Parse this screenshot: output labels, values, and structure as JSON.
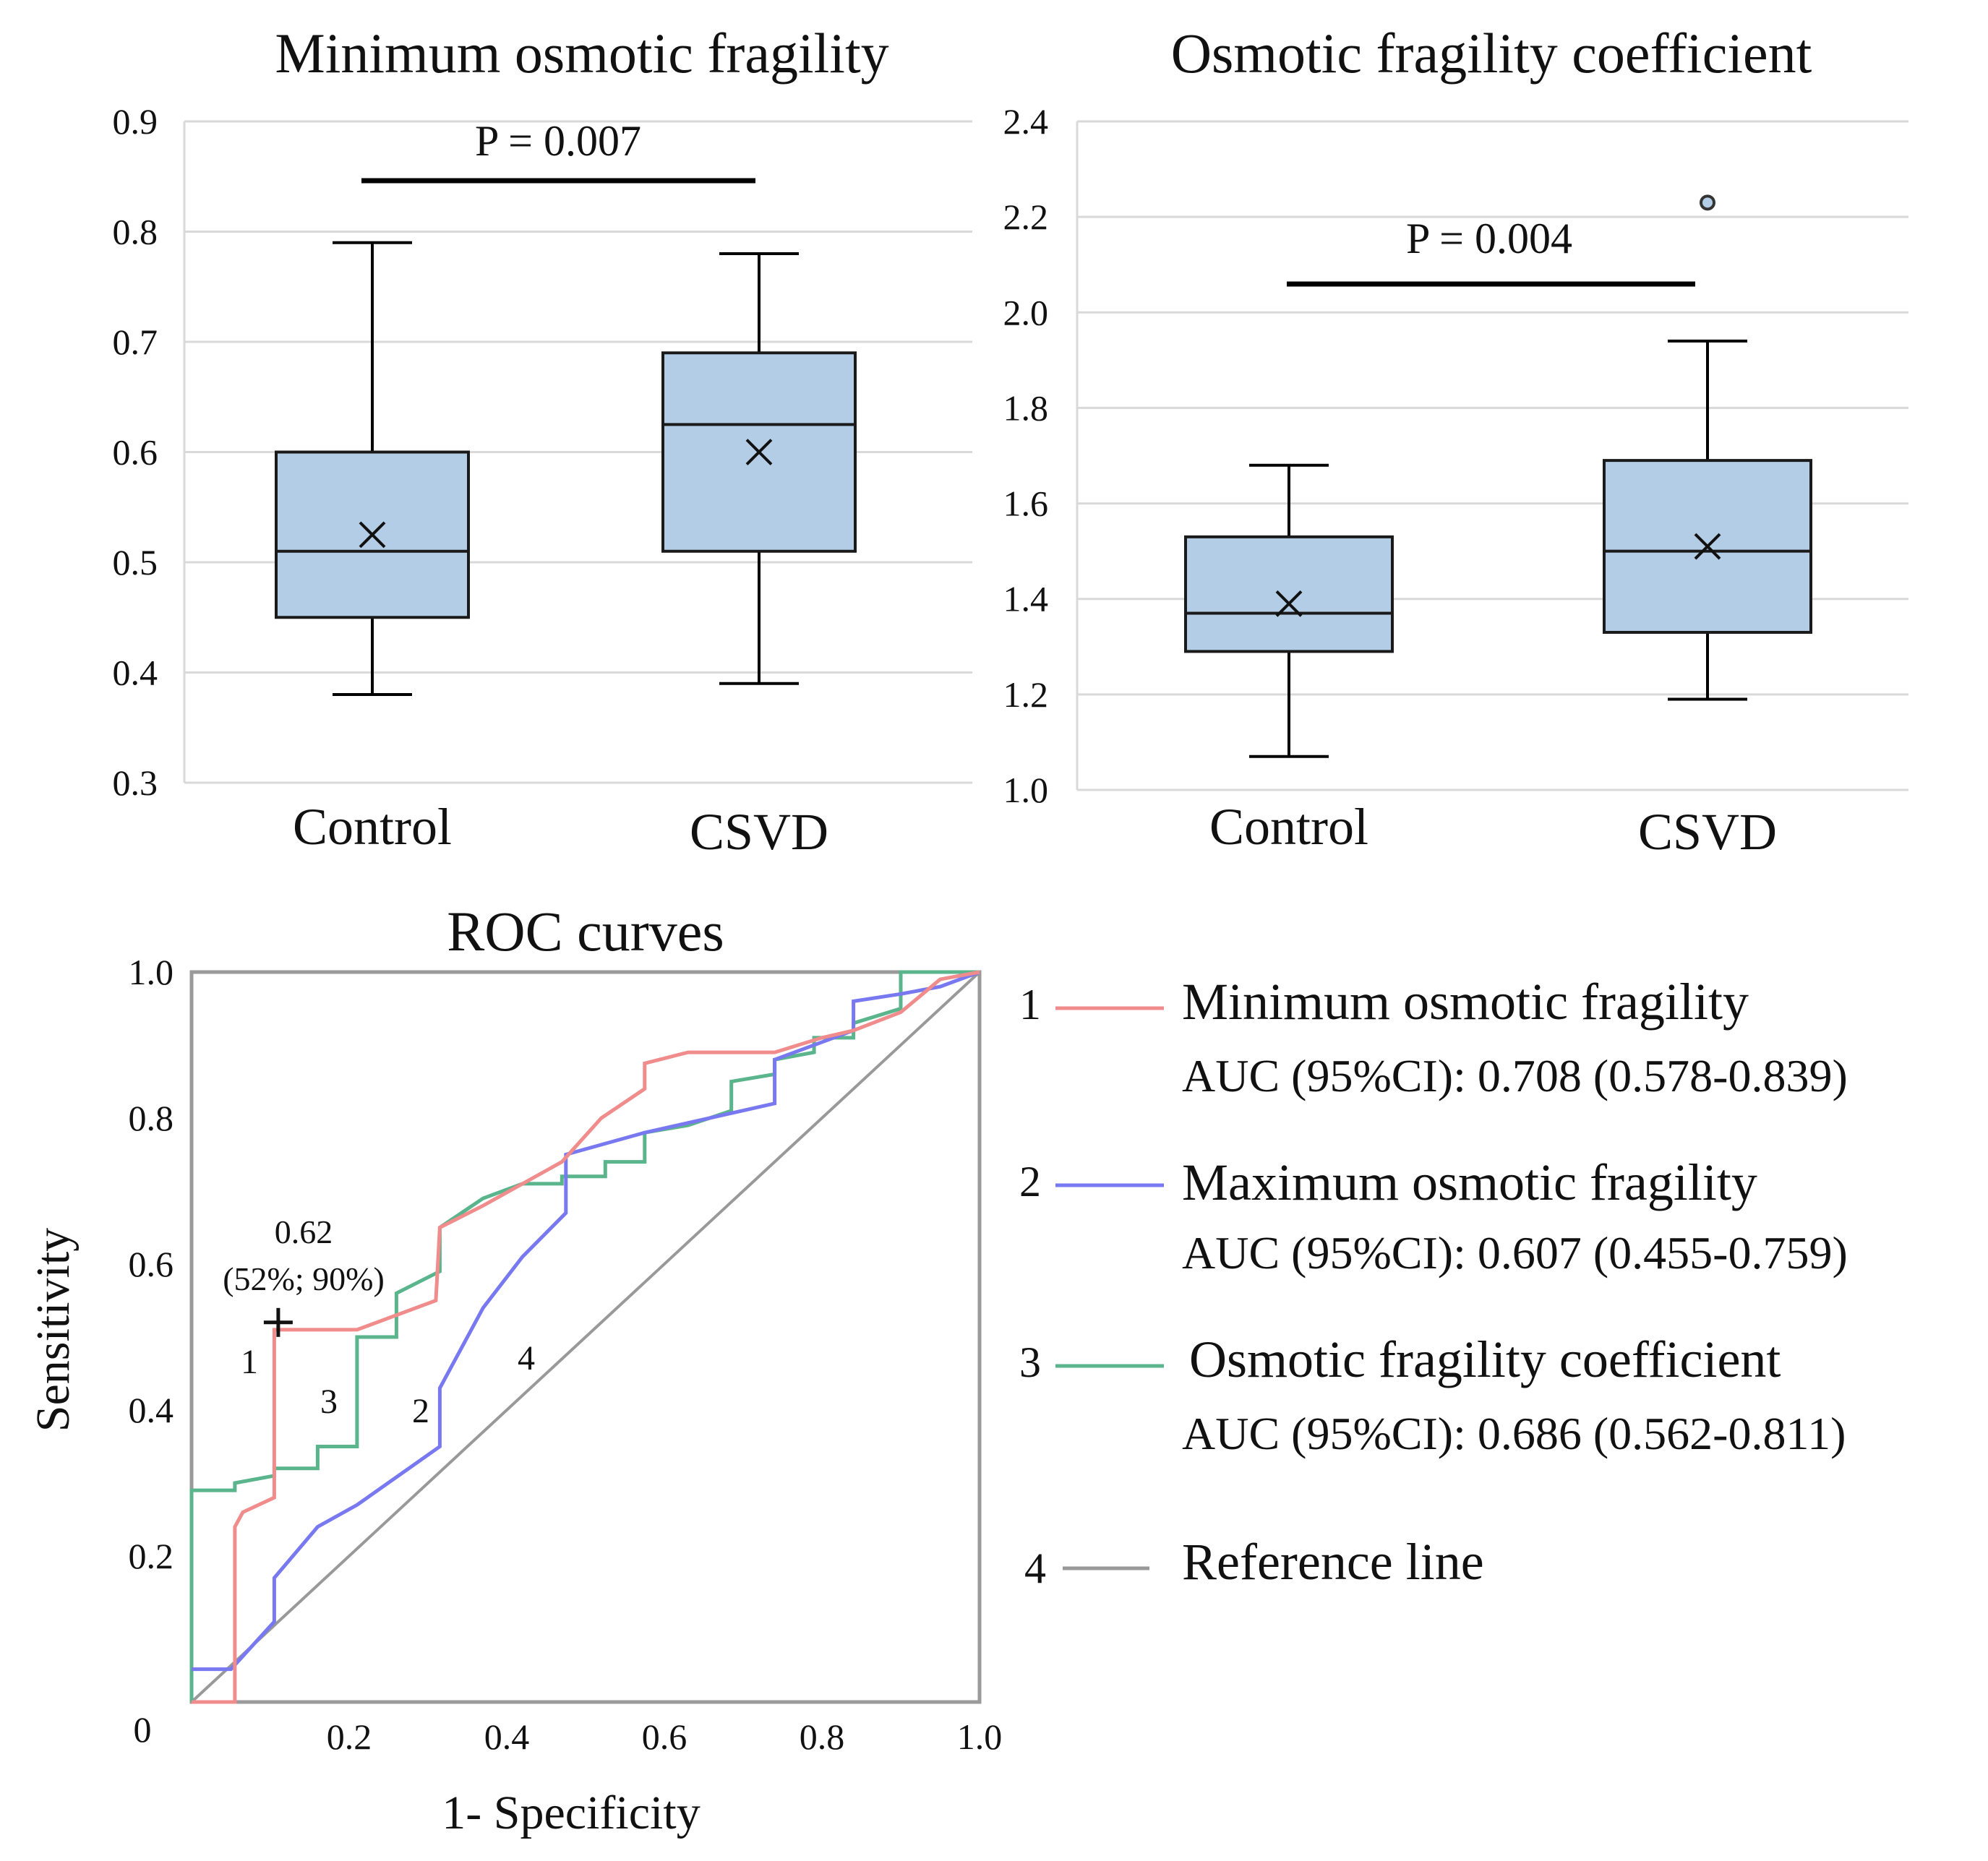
{
  "chart_data": [
    {
      "type": "box",
      "title": "Minimum osmotic fragility",
      "categories": [
        "Control",
        "CSVD"
      ],
      "ylim": [
        0.3,
        0.9
      ],
      "yticks": [
        "0.9",
        "0.8",
        "0.7",
        "0.6",
        "0.5",
        "0.4",
        "0.3"
      ],
      "ytick_values": [
        0.9,
        0.8,
        0.7,
        0.6,
        0.5,
        0.4,
        0.3
      ],
      "boxes": [
        {
          "name": "Control",
          "min": 0.38,
          "q1": 0.45,
          "median": 0.51,
          "q3": 0.6,
          "max": 0.79,
          "mean": 0.525
        },
        {
          "name": "CSVD",
          "min": 0.39,
          "q1": 0.51,
          "median": 0.625,
          "q3": 0.69,
          "max": 0.78,
          "mean": 0.6
        }
      ],
      "comparison": {
        "label": "P = 0.007"
      },
      "box_color": "#b4cde6"
    },
    {
      "type": "box",
      "title": "Osmotic fragility coefficient",
      "categories": [
        "Control",
        "CSVD"
      ],
      "ylim": [
        1.0,
        2.4
      ],
      "yticks": [
        "2.4",
        "2.2",
        "2.0",
        "1.8",
        "1.6",
        "1.4",
        "1.2",
        "1.0"
      ],
      "ytick_values": [
        2.4,
        2.2,
        2.0,
        1.8,
        1.6,
        1.4,
        1.2,
        1.0
      ],
      "boxes": [
        {
          "name": "Control",
          "min": 1.07,
          "q1": 1.29,
          "median": 1.37,
          "q3": 1.53,
          "max": 1.68,
          "mean": 1.39
        },
        {
          "name": "CSVD",
          "min": 1.19,
          "q1": 1.33,
          "median": 1.5,
          "q3": 1.69,
          "max": 1.94,
          "mean": 1.51,
          "outliers": [
            2.23
          ]
        }
      ],
      "comparison": {
        "label": "P = 0.004"
      },
      "box_color": "#b4cde6"
    },
    {
      "type": "line",
      "title": "ROC curves",
      "xlabel": "1- Specificity",
      "ylabel": "Sensitivity",
      "xlim": [
        0,
        1
      ],
      "ylim": [
        0,
        1
      ],
      "xticks": [
        "0.2",
        "0.4",
        "0.6",
        "0.8",
        "1.0"
      ],
      "xtick_values": [
        0.2,
        0.4,
        0.6,
        0.8,
        1.0
      ],
      "yticks": [
        "1.0",
        "0.8",
        "0.6",
        "0.4",
        "0.2"
      ],
      "ytick_values": [
        1.0,
        0.8,
        0.6,
        0.4,
        0.2
      ],
      "origin_label": "0",
      "series": [
        {
          "num": "1",
          "name": "Minimum osmotic fragility",
          "auc": "AUC (95%CI): 0.708 (0.578-0.839)",
          "color": "#f08c8c",
          "points": [
            [
              0,
              0
            ],
            [
              0.055,
              0
            ],
            [
              0.055,
              0.24
            ],
            [
              0.065,
              0.26
            ],
            [
              0.105,
              0.28
            ],
            [
              0.105,
              0.51
            ],
            [
              0.21,
              0.51
            ],
            [
              0.31,
              0.55
            ],
            [
              0.315,
              0.65
            ],
            [
              0.37,
              0.68
            ],
            [
              0.47,
              0.74
            ],
            [
              0.52,
              0.8
            ],
            [
              0.575,
              0.84
            ],
            [
              0.575,
              0.875
            ],
            [
              0.63,
              0.89
            ],
            [
              0.74,
              0.89
            ],
            [
              0.8,
              0.91
            ],
            [
              0.84,
              0.92
            ],
            [
              0.9,
              0.945
            ],
            [
              0.95,
              0.99
            ],
            [
              1,
              1
            ]
          ]
        },
        {
          "num": "2",
          "name": "Maximum osmotic fragility",
          "auc": "AUC (95%CI): 0.607 (0.455-0.759)",
          "color": "#7878f0",
          "points": [
            [
              0,
              0.045
            ],
            [
              0.05,
              0.045
            ],
            [
              0.105,
              0.11
            ],
            [
              0.105,
              0.17
            ],
            [
              0.16,
              0.24
            ],
            [
              0.21,
              0.27
            ],
            [
              0.315,
              0.35
            ],
            [
              0.315,
              0.43
            ],
            [
              0.37,
              0.54
            ],
            [
              0.42,
              0.61
            ],
            [
              0.475,
              0.67
            ],
            [
              0.475,
              0.75
            ],
            [
              0.575,
              0.78
            ],
            [
              0.74,
              0.82
            ],
            [
              0.74,
              0.88
            ],
            [
              0.84,
              0.92
            ],
            [
              0.84,
              0.96
            ],
            [
              0.9,
              0.97
            ],
            [
              0.95,
              0.98
            ],
            [
              1,
              1
            ]
          ]
        },
        {
          "num": "3",
          "name": "Osmotic fragility coefficient",
          "auc": "AUC (95%CI): 0.686 (0.562-0.811)",
          "color": "#5ab48c",
          "points": [
            [
              0,
              0
            ],
            [
              0,
              0.29
            ],
            [
              0.055,
              0.29
            ],
            [
              0.055,
              0.3
            ],
            [
              0.105,
              0.31
            ],
            [
              0.105,
              0.32
            ],
            [
              0.16,
              0.32
            ],
            [
              0.16,
              0.35
            ],
            [
              0.21,
              0.35
            ],
            [
              0.21,
              0.5
            ],
            [
              0.26,
              0.5
            ],
            [
              0.26,
              0.56
            ],
            [
              0.315,
              0.59
            ],
            [
              0.315,
              0.65
            ],
            [
              0.37,
              0.69
            ],
            [
              0.42,
              0.71
            ],
            [
              0.47,
              0.71
            ],
            [
              0.47,
              0.72
            ],
            [
              0.525,
              0.72
            ],
            [
              0.525,
              0.74
            ],
            [
              0.575,
              0.74
            ],
            [
              0.575,
              0.78
            ],
            [
              0.63,
              0.79
            ],
            [
              0.685,
              0.81
            ],
            [
              0.685,
              0.85
            ],
            [
              0.74,
              0.86
            ],
            [
              0.74,
              0.88
            ],
            [
              0.79,
              0.89
            ],
            [
              0.79,
              0.91
            ],
            [
              0.84,
              0.91
            ],
            [
              0.84,
              0.93
            ],
            [
              0.9,
              0.95
            ],
            [
              0.9,
              1.0
            ],
            [
              1,
              1
            ]
          ]
        },
        {
          "num": "4",
          "name": "Reference line",
          "color": "#999999",
          "points": [
            [
              0,
              0
            ],
            [
              1,
              1
            ]
          ]
        }
      ],
      "cutoff": {
        "x": 0.11,
        "y": 0.52,
        "label_value": "0.62",
        "label_detail": "(52%; 90%)"
      }
    }
  ]
}
